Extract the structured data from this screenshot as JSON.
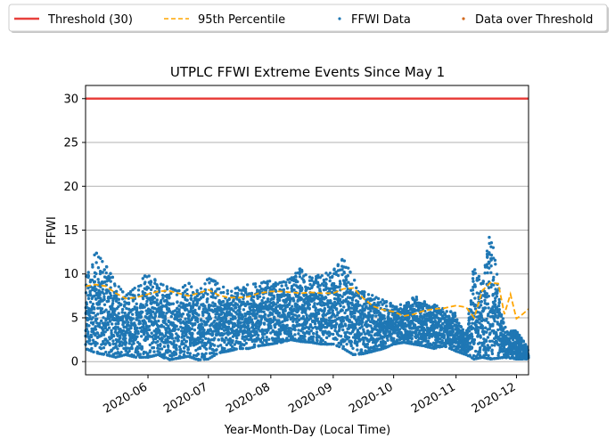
{
  "chart_data": {
    "type": "scatter",
    "title": "UTPLC FFWI Extreme Events Since May 1",
    "xlabel": "Year-Month-Day (Local Time)",
    "ylabel": "FFWI",
    "xlim": [
      "2020-05-01",
      "2020-12-07"
    ],
    "ylim": [
      -1.5,
      31.5
    ],
    "x_ticks": [
      "2020-06",
      "2020-07",
      "2020-08",
      "2020-09",
      "2020-10",
      "2020-11",
      "2020-12"
    ],
    "y_ticks": [
      "0",
      "5",
      "10",
      "15",
      "20",
      "25",
      "30"
    ],
    "grid": "horizontal",
    "legend_position": "top, above plot",
    "legend": [
      "Threshold (30)",
      "95th Percentile",
      "FFWI Data",
      "Data over Threshold"
    ],
    "threshold": 30,
    "percentile_95": {
      "x": [
        "2020-05-01",
        "2020-05-06",
        "2020-05-11",
        "2020-05-16",
        "2020-05-21",
        "2020-05-26",
        "2020-06-01",
        "2020-06-06",
        "2020-06-11",
        "2020-06-16",
        "2020-06-21",
        "2020-06-26",
        "2020-07-01",
        "2020-07-06",
        "2020-07-11",
        "2020-07-16",
        "2020-07-21",
        "2020-07-26",
        "2020-08-01",
        "2020-08-06",
        "2020-08-11",
        "2020-08-16",
        "2020-08-21",
        "2020-08-26",
        "2020-09-01",
        "2020-09-06",
        "2020-09-11",
        "2020-09-16",
        "2020-09-21",
        "2020-09-26",
        "2020-10-01",
        "2020-10-06",
        "2020-10-11",
        "2020-10-16",
        "2020-10-21",
        "2020-10-26",
        "2020-11-01",
        "2020-11-06",
        "2020-11-10",
        "2020-11-14",
        "2020-11-18",
        "2020-11-22",
        "2020-11-25",
        "2020-11-28",
        "2020-12-01",
        "2020-12-04",
        "2020-12-07"
      ],
      "y": [
        8.6,
        8.8,
        8.6,
        7.8,
        7.2,
        7.3,
        7.7,
        8.0,
        8.1,
        7.8,
        7.5,
        7.8,
        8.2,
        7.6,
        7.3,
        7.3,
        7.4,
        7.8,
        8.0,
        8.0,
        7.9,
        7.8,
        7.9,
        7.8,
        7.8,
        8.3,
        8.4,
        7.2,
        6.3,
        5.9,
        5.7,
        5.2,
        5.4,
        5.8,
        6.0,
        6.1,
        6.4,
        6.2,
        5.0,
        8.1,
        9.0,
        8.9,
        5.4,
        7.7,
        4.9,
        5.4,
        6.0
      ]
    },
    "ffwi_daily": {
      "x": [
        "2020-05-01",
        "2020-05-06",
        "2020-05-11",
        "2020-05-16",
        "2020-05-21",
        "2020-05-26",
        "2020-06-01",
        "2020-06-06",
        "2020-06-11",
        "2020-06-16",
        "2020-06-21",
        "2020-06-26",
        "2020-07-01",
        "2020-07-06",
        "2020-07-11",
        "2020-07-16",
        "2020-07-21",
        "2020-07-26",
        "2020-08-01",
        "2020-08-06",
        "2020-08-11",
        "2020-08-16",
        "2020-08-21",
        "2020-08-26",
        "2020-09-01",
        "2020-09-06",
        "2020-09-11",
        "2020-09-16",
        "2020-09-21",
        "2020-09-26",
        "2020-10-01",
        "2020-10-06",
        "2020-10-11",
        "2020-10-16",
        "2020-10-21",
        "2020-10-26",
        "2020-11-01",
        "2020-11-06",
        "2020-11-10",
        "2020-11-14",
        "2020-11-18",
        "2020-11-22",
        "2020-11-25",
        "2020-11-28",
        "2020-12-01",
        "2020-12-04",
        "2020-12-07"
      ],
      "min": [
        1.5,
        1.0,
        0.8,
        0.5,
        0.8,
        0.5,
        0.5,
        0.8,
        0.2,
        0.4,
        0.6,
        0.2,
        0.3,
        1.0,
        1.2,
        1.5,
        1.5,
        1.8,
        2.0,
        2.2,
        2.5,
        2.3,
        2.2,
        2.0,
        2.0,
        1.5,
        0.8,
        0.9,
        1.2,
        1.5,
        2.0,
        2.2,
        2.0,
        1.8,
        1.5,
        1.8,
        1.2,
        0.8,
        0.3,
        0.5,
        0.3,
        0.4,
        0.5,
        0.4,
        0.3,
        0.3,
        0.3
      ],
      "max": [
        9.5,
        12.5,
        11.0,
        9.0,
        7.5,
        8.5,
        10.2,
        9.0,
        8.5,
        8.0,
        9.0,
        8.0,
        9.5,
        9.0,
        8.0,
        8.5,
        8.8,
        9.0,
        9.2,
        9.0,
        9.5,
        10.7,
        9.5,
        10.0,
        10.5,
        11.8,
        9.5,
        8.0,
        7.5,
        7.0,
        6.5,
        6.5,
        7.5,
        7.0,
        6.5,
        6.0,
        5.5,
        3.0,
        11.5,
        8.5,
        15.3,
        9.0,
        4.0,
        3.5,
        3.5,
        2.5,
        1.5
      ]
    },
    "data_over_threshold": [],
    "colors": {
      "threshold": "#e8403c",
      "percentile": "#ffa500",
      "ffwi": "#1f77b4",
      "over_threshold": "#d2691e",
      "grid": "#b0b0b0"
    }
  }
}
